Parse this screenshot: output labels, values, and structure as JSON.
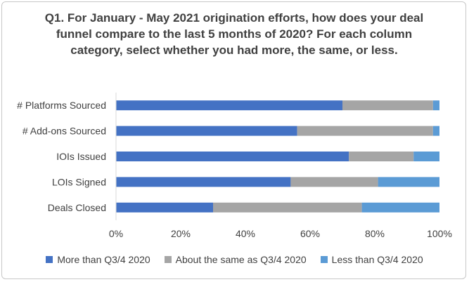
{
  "chart_data": {
    "type": "bar",
    "orientation": "horizontal",
    "stacked": "percent",
    "title": "Q1. For January - May 2021 origination efforts, how does your deal funnel compare to the last 5 months of 2020? For each column category, select whether you had more, the same, or less.",
    "categories": [
      "# Platforms Sourced",
      "# Add-ons Sourced",
      "IOIs Issued",
      "LOIs Signed",
      "Deals Closed"
    ],
    "series": [
      {
        "name": "More than Q3/4 2020",
        "color": "#4472C4",
        "values": [
          70,
          56,
          72,
          54,
          30
        ]
      },
      {
        "name": "About the same as Q3/4 2020",
        "color": "#A5A5A5",
        "values": [
          28,
          42,
          20,
          27,
          46
        ]
      },
      {
        "name": "Less than Q3/4 2020",
        "color": "#5B9BD5",
        "values": [
          2,
          2,
          8,
          19,
          24
        ]
      }
    ],
    "xlim": [
      0,
      100
    ],
    "xticks": [
      "0%",
      "20%",
      "40%",
      "60%",
      "80%",
      "100%"
    ],
    "legend_position": "bottom",
    "grid": false
  }
}
